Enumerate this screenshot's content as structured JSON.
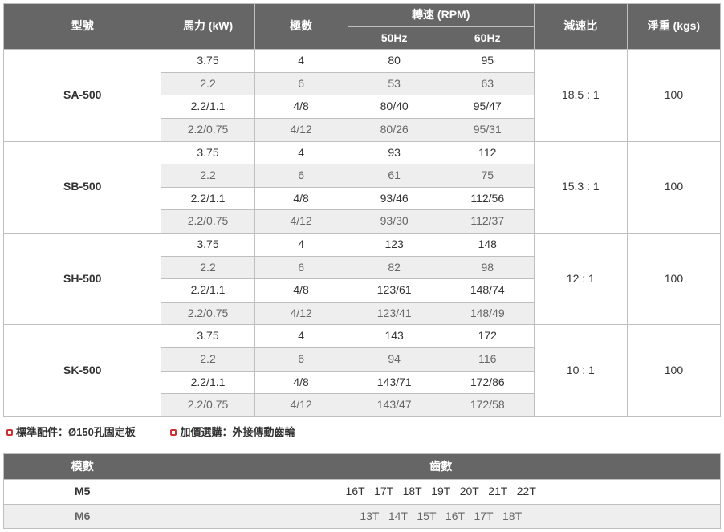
{
  "mainTable": {
    "headers": {
      "model": "型號",
      "power": "馬力 (kW)",
      "poles": "極數",
      "speed": "轉速 (RPM)",
      "hz50": "50Hz",
      "hz60": "60Hz",
      "ratio": "減速比",
      "weight": "淨重 (kgs)"
    },
    "colWidths": [
      "22%",
      "13%",
      "13%",
      "13%",
      "13%",
      "13%",
      "13%"
    ],
    "groups": [
      {
        "model": "SA-500",
        "ratio": "18.5 : 1",
        "weight": "100",
        "rows": [
          {
            "kw": "3.75",
            "poles": "4",
            "hz50": "80",
            "hz60": "95",
            "alt": false
          },
          {
            "kw": "2.2",
            "poles": "6",
            "hz50": "53",
            "hz60": "63",
            "alt": true
          },
          {
            "kw": "2.2/1.1",
            "poles": "4/8",
            "hz50": "80/40",
            "hz60": "95/47",
            "alt": false
          },
          {
            "kw": "2.2/0.75",
            "poles": "4/12",
            "hz50": "80/26",
            "hz60": "95/31",
            "alt": true
          }
        ]
      },
      {
        "model": "SB-500",
        "ratio": "15.3 : 1",
        "weight": "100",
        "rows": [
          {
            "kw": "3.75",
            "poles": "4",
            "hz50": "93",
            "hz60": "112",
            "alt": false
          },
          {
            "kw": "2.2",
            "poles": "6",
            "hz50": "61",
            "hz60": "75",
            "alt": true
          },
          {
            "kw": "2.2/1.1",
            "poles": "4/8",
            "hz50": "93/46",
            "hz60": "112/56",
            "alt": false
          },
          {
            "kw": "2.2/0.75",
            "poles": "4/12",
            "hz50": "93/30",
            "hz60": "112/37",
            "alt": true
          }
        ]
      },
      {
        "model": "SH-500",
        "ratio": "12 : 1",
        "weight": "100",
        "rows": [
          {
            "kw": "3.75",
            "poles": "4",
            "hz50": "123",
            "hz60": "148",
            "alt": false
          },
          {
            "kw": "2.2",
            "poles": "6",
            "hz50": "82",
            "hz60": "98",
            "alt": true
          },
          {
            "kw": "2.2/1.1",
            "poles": "4/8",
            "hz50": "123/61",
            "hz60": "148/74",
            "alt": false
          },
          {
            "kw": "2.2/0.75",
            "poles": "4/12",
            "hz50": "123/41",
            "hz60": "148/49",
            "alt": true
          }
        ]
      },
      {
        "model": "SK-500",
        "ratio": "10 : 1",
        "weight": "100",
        "rows": [
          {
            "kw": "3.75",
            "poles": "4",
            "hz50": "143",
            "hz60": "172",
            "alt": false
          },
          {
            "kw": "2.2",
            "poles": "6",
            "hz50": "94",
            "hz60": "116",
            "alt": true
          },
          {
            "kw": "2.2/1.1",
            "poles": "4/8",
            "hz50": "143/71",
            "hz60": "172/86",
            "alt": false
          },
          {
            "kw": "2.2/0.75",
            "poles": "4/12",
            "hz50": "143/47",
            "hz60": "172/58",
            "alt": true
          }
        ]
      }
    ]
  },
  "notes": {
    "standard": "標準配件：Ø150孔固定板",
    "option": "加價選購：外接傳動齒輪"
  },
  "gearTable": {
    "headers": {
      "module": "模數",
      "teeth": "齒數"
    },
    "colWidths": [
      "22%",
      "78%"
    ],
    "rows": [
      {
        "module": "M5",
        "teeth": "16T   17T   18T   19T   20T   21T   22T",
        "alt": false
      },
      {
        "module": "M6",
        "teeth": "13T   14T   15T   16T   17T   18T",
        "alt": true
      }
    ]
  },
  "style": {
    "headerBg": "#666666",
    "altBg": "#eeeeee",
    "borderColor": "#bfbfbf",
    "bulletColor": "#cc3333"
  }
}
